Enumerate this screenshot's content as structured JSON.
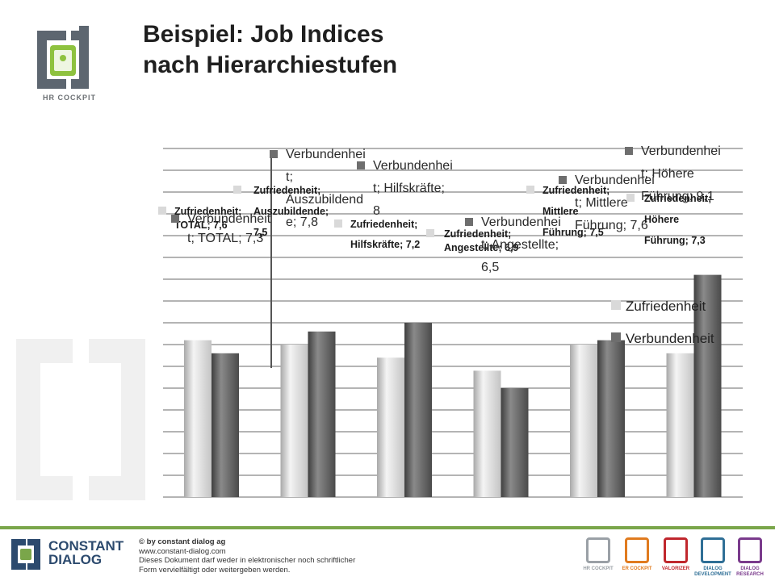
{
  "title": {
    "line1": "Beispiel: Job Indices",
    "line2": "nach Hierarchiestufen"
  },
  "logo": {
    "label": "HR COCKPIT"
  },
  "chart_data": {
    "type": "bar",
    "categories": [
      "TOTAL",
      "Auszubildende",
      "Hilfskräfte",
      "Angestellte",
      "Mittlere Führung",
      "Höhere Führung"
    ],
    "series": [
      {
        "name": "Zufriedenheit",
        "values": [
          7.6,
          7.5,
          7.2,
          6.9,
          7.5,
          7.3
        ],
        "color": "#d9d9d9"
      },
      {
        "name": "Verbundenheit",
        "values": [
          7.3,
          7.8,
          8,
          6.5,
          7.6,
          9.1
        ],
        "color": "#6e6e6e"
      }
    ],
    "ylim": [
      4,
      12
    ],
    "grid": true,
    "legend": "right",
    "data_labels": [
      [
        "Zufriedenheit;",
        "TOTAL; 7,6"
      ],
      [
        "Verbundenheit",
        "t; TOTAL; 7,3"
      ],
      [
        "Zufriedenheit;",
        "Auszubildende;",
        "7,5"
      ],
      [
        "Verbundenhei",
        "t;",
        "Auszubildend",
        "e; 7,8"
      ],
      [
        "Zufriedenheit;",
        "Hilfskräfte; 7,2"
      ],
      [
        "Verbundenhei",
        "t; Hilfskräfte;",
        "8"
      ],
      [
        "Zufriedenheit;",
        "Angestellte; 6,9"
      ],
      [
        "Verbundenhei",
        "t; Angestellte;",
        "6,5"
      ],
      [
        "Zufriedenheit;",
        "Mittlere",
        "Führung; 7,5"
      ],
      [
        "Verbundenhei",
        "t; Mittlere",
        "Führung; 7,6"
      ],
      [
        "Zufriedenheit;",
        "Höhere",
        "Führung; 7,3"
      ],
      [
        "Verbundenhei",
        "t; Höhere",
        "Führung; 9,1"
      ]
    ]
  },
  "footer": {
    "company": [
      "CONSTANT",
      "DIALOG"
    ],
    "copyright_lines": [
      "© by constant dialog ag",
      "www.constant-dialog.com",
      "Dieses Dokument darf weder in elektronischer noch schriftlicher",
      "Form vervielfältigt oder weitergeben werden."
    ],
    "brands": [
      {
        "label": "HR COCKPIT",
        "color": "#9aa0a6"
      },
      {
        "label": "ER COCKPIT",
        "color": "#e07b1f"
      },
      {
        "label": "VALORIZER",
        "color": "#c0272d"
      },
      {
        "label": "DIALOG DEVELOPMENT",
        "color": "#2f6f96"
      },
      {
        "label": "DIALOG RESEARCH",
        "color": "#7a3a8c"
      }
    ]
  }
}
